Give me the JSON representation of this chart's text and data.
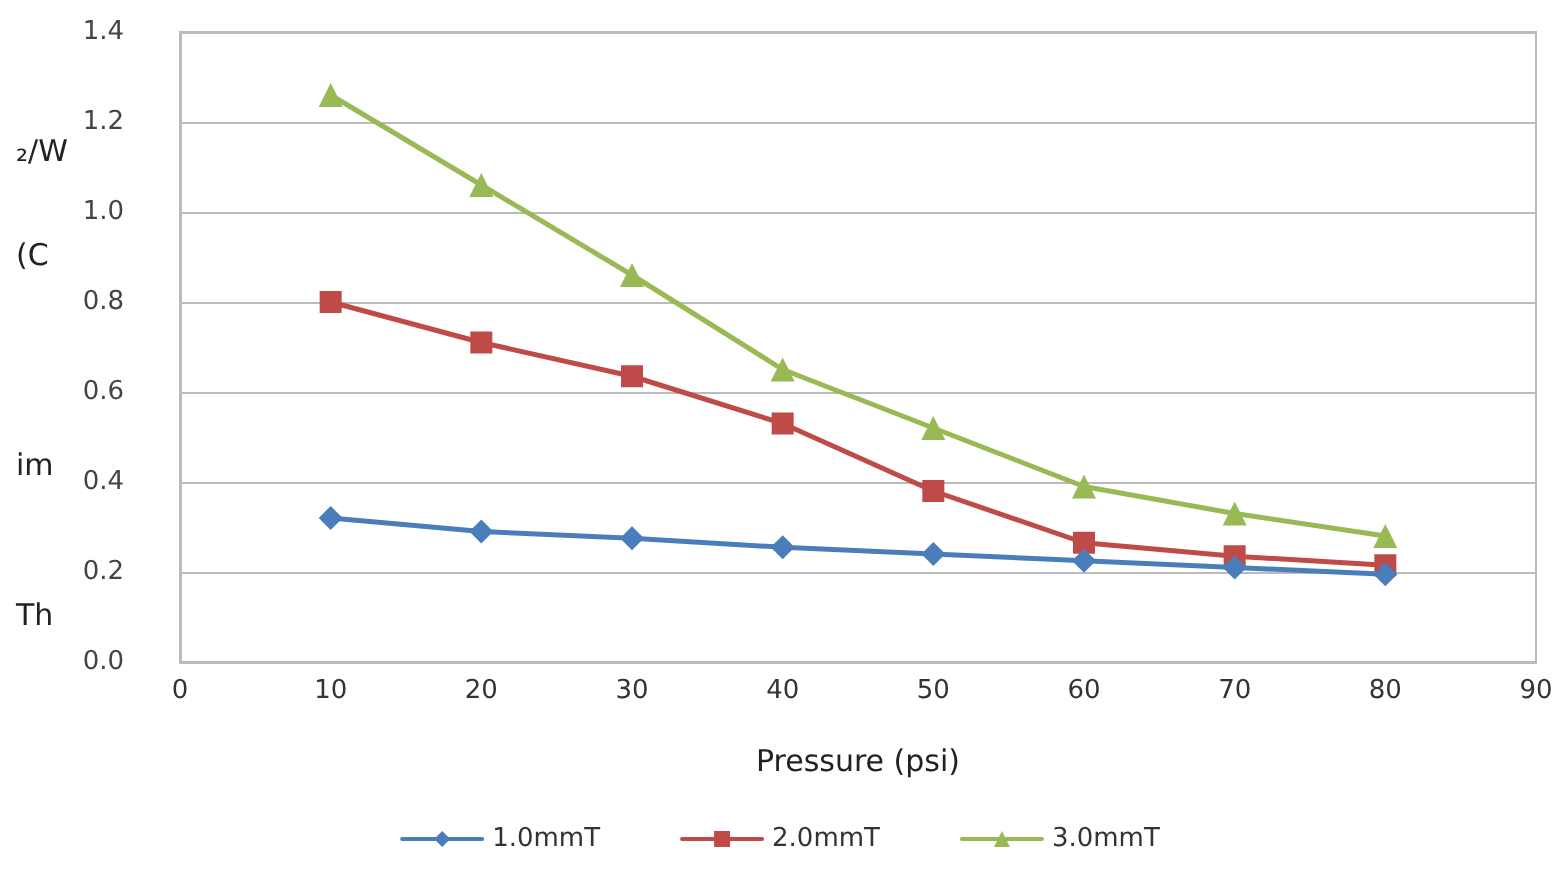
{
  "chart_data": {
    "type": "line",
    "xlabel": "Pressure (psi)",
    "x": [
      10,
      20,
      30,
      40,
      50,
      60,
      70,
      80
    ],
    "series": [
      {
        "name": "1.0mmT",
        "color": "#4a7ebb",
        "marker": "diamond",
        "values": [
          0.32,
          0.29,
          0.275,
          0.255,
          0.24,
          0.225,
          0.21,
          0.195
        ]
      },
      {
        "name": "2.0mmT",
        "color": "#be4b48",
        "marker": "square",
        "values": [
          0.8,
          0.71,
          0.635,
          0.53,
          0.38,
          0.265,
          0.235,
          0.215
        ]
      },
      {
        "name": "3.0mmT",
        "color": "#98b954",
        "marker": "triangle",
        "values": [
          1.26,
          1.06,
          0.86,
          0.65,
          0.52,
          0.39,
          0.33,
          0.28
        ]
      }
    ],
    "annotations": [
      "₂/W",
      "(C",
      "im",
      "Th"
    ],
    "xlim": [
      0,
      90
    ],
    "xticks": [
      0,
      10,
      20,
      30,
      40,
      50,
      60,
      70,
      80,
      90
    ],
    "ylim": [
      0,
      1.4
    ],
    "yticks": [
      {
        "value": 0,
        "label": "0.0"
      },
      {
        "value": 0.2,
        "label": "0.2"
      },
      {
        "value": 0.4,
        "label": "0.4"
      },
      {
        "value": 0.6,
        "label": "0.6"
      },
      {
        "value": 0.8,
        "label": "0.8"
      },
      {
        "value": 1,
        "label": "1.0"
      },
      {
        "value": 1.2,
        "label": "1.2"
      },
      {
        "value": 1.4,
        "label": "1.4"
      }
    ],
    "grid": "y",
    "legend": "bottom",
    "line_style": "solid"
  }
}
